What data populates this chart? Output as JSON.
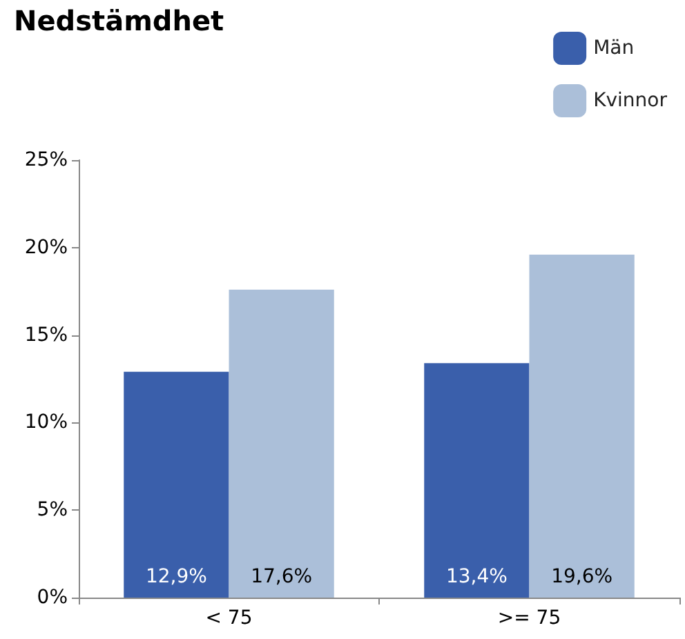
{
  "chart_data": {
    "type": "bar",
    "title": "Nedstämdhet",
    "categories": [
      "< 75",
      ">= 75"
    ],
    "series": [
      {
        "name": "Män",
        "color": "#3a5fab",
        "values": [
          12.9,
          13.4
        ],
        "value_labels": [
          "12,9%",
          "13,4%"
        ]
      },
      {
        "name": "Kvinnor",
        "color": "#abbfd9",
        "values": [
          17.6,
          19.6
        ],
        "value_labels": [
          "17,6%",
          "19,6%"
        ]
      }
    ],
    "ylim": [
      0,
      25
    ],
    "yticks": [
      {
        "value": 0,
        "label": "0%"
      },
      {
        "value": 5,
        "label": "5%"
      },
      {
        "value": 10,
        "label": "10%"
      },
      {
        "value": 15,
        "label": "15%"
      },
      {
        "value": 20,
        "label": "20%"
      },
      {
        "value": 25,
        "label": "25%"
      }
    ],
    "grid": false,
    "legend": "top right"
  }
}
